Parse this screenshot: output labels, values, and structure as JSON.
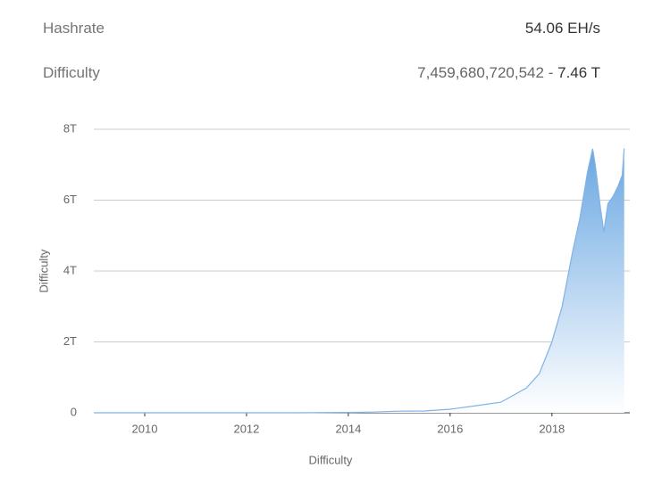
{
  "header": {
    "rows": [
      {
        "label": "Hashrate",
        "value": "54.06 EH/s"
      },
      {
        "label": "Difficulty",
        "value": "7,459,680,720,542",
        "separator": "-",
        "short_value": "7.46 T"
      }
    ]
  },
  "chart_data": {
    "type": "area",
    "ylabel": "Difficulty",
    "xlabel": "Difficulty",
    "x": [
      2009,
      2013,
      2014,
      2014.5,
      2015,
      2015.5,
      2016,
      2016.5,
      2017,
      2017.5,
      2017.75,
      2018,
      2018.2,
      2018.4,
      2018.55,
      2018.7,
      2018.8,
      2018.85,
      2018.95,
      2019.02,
      2019.1,
      2019.2,
      2019.3,
      2019.38,
      2019.42
    ],
    "series": [
      {
        "name": "Difficulty",
        "color": "#7fb2e5",
        "values": [
          0,
          0,
          10000000000.0,
          20000000000.0,
          45000000000.0,
          50000000000.0,
          100000000000.0,
          200000000000.0,
          300000000000.0,
          700000000000.0,
          1100000000000.0,
          2000000000000.0,
          3000000000000.0,
          4500000000000.0,
          5500000000000.0,
          6800000000000.0,
          7450000000000.0,
          7000000000000.0,
          5800000000000.0,
          5100000000000.0,
          5900000000000.0,
          6100000000000.0,
          6400000000000.0,
          6700000000000.0,
          7460000000000.0
        ]
      }
    ],
    "xlim": [
      2009,
      2019.53
    ],
    "xticks": [
      2010,
      2012,
      2014,
      2016,
      2018
    ],
    "ylim": [
      0,
      8000000000000.0
    ],
    "yticks": [
      0,
      {
        "value": 2000000000000.0,
        "label": "2T"
      },
      {
        "value": 4000000000000.0,
        "label": "4T"
      },
      {
        "value": 6000000000000.0,
        "label": "6T"
      },
      {
        "value": 8000000000000.0,
        "label": "8T"
      }
    ],
    "grid": true
  }
}
